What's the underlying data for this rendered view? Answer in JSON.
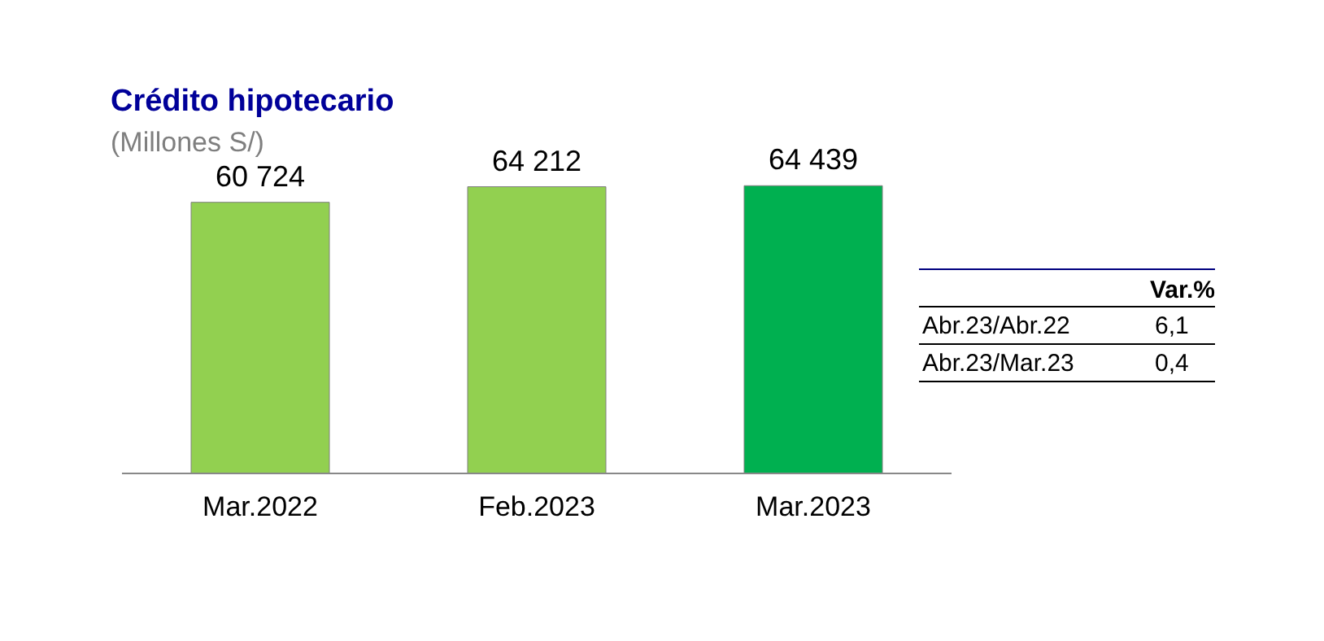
{
  "chart_data": {
    "type": "bar",
    "title": "Crédito hipotecario",
    "subtitle": "(Millones S/)",
    "categories": [
      "Mar.2022",
      "Feb.2023",
      "Mar.2023"
    ],
    "values": [
      60724,
      64212,
      64439
    ],
    "colors": [
      "#92d050",
      "#92d050",
      "#00b050"
    ],
    "data_labels": true,
    "annotations": [
      "Var.%",
      "Abr.23/Abr.22",
      "6,1",
      "Abr.23/Mar.23",
      "0,4"
    ]
  }
}
